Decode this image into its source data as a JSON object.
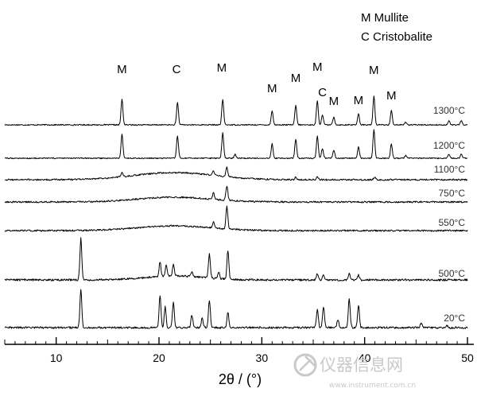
{
  "chart_data": {
    "type": "line",
    "xlabel": "2θ / (°)",
    "xlim": [
      5,
      50
    ],
    "x_ticks": [
      "10",
      "20",
      "30",
      "40",
      "50"
    ],
    "grid": false,
    "legend": {
      "placement": "top-right",
      "entries": [
        {
          "symbol": "M",
          "label": "M Mullite"
        },
        {
          "symbol": "C",
          "label": "C Cristobalite"
        }
      ]
    },
    "series_labels": [
      "1300°C",
      "1200°C",
      "1100°C",
      "750°C",
      "550°C",
      "500°C",
      "20°C"
    ],
    "series": [
      {
        "name": "1300°C",
        "baseline": 0,
        "noise": 0.35,
        "peaks": [
          [
            16.4,
            16
          ],
          [
            21.8,
            14
          ],
          [
            26.2,
            16
          ],
          [
            31.0,
            9
          ],
          [
            33.3,
            12
          ],
          [
            35.4,
            15
          ],
          [
            35.9,
            6
          ],
          [
            37.0,
            5
          ],
          [
            39.4,
            7
          ],
          [
            40.9,
            18
          ],
          [
            42.6,
            9
          ],
          [
            44.0,
            1.8
          ],
          [
            48.2,
            2.5
          ],
          [
            49.4,
            2.5
          ]
        ],
        "humps": []
      },
      {
        "name": "1200°C",
        "baseline": 0,
        "noise": 0.35,
        "peaks": [
          [
            16.4,
            15
          ],
          [
            21.8,
            14
          ],
          [
            26.2,
            16
          ],
          [
            27.4,
            2.5
          ],
          [
            31.0,
            9
          ],
          [
            33.3,
            12
          ],
          [
            35.4,
            14
          ],
          [
            35.9,
            6
          ],
          [
            37.0,
            5
          ],
          [
            39.4,
            7
          ],
          [
            40.9,
            18
          ],
          [
            42.6,
            9
          ],
          [
            44.0,
            1.8
          ],
          [
            48.2,
            2.5
          ],
          [
            49.4,
            2.5
          ]
        ],
        "humps": []
      },
      {
        "name": "1100°C",
        "baseline": 0,
        "noise": 0.5,
        "peaks": [
          [
            16.4,
            2.5
          ],
          [
            25.3,
            3
          ],
          [
            26.6,
            6
          ],
          [
            33.3,
            1.5
          ],
          [
            35.4,
            2
          ],
          [
            41.0,
            1.8
          ]
        ],
        "humps": [
          [
            21.5,
            4.5,
            5.5
          ]
        ]
      },
      {
        "name": "750°C",
        "baseline": 0,
        "noise": 0.5,
        "peaks": [
          [
            25.3,
            4
          ],
          [
            26.6,
            9
          ]
        ],
        "humps": [
          [
            21.5,
            3,
            5
          ]
        ]
      },
      {
        "name": "550°C",
        "baseline": 0,
        "noise": 0.5,
        "peaks": [
          [
            25.3,
            4
          ],
          [
            26.6,
            14
          ]
        ],
        "humps": [
          [
            21.5,
            3,
            5
          ]
        ]
      },
      {
        "name": "500°C",
        "baseline": 0,
        "noise": 0.6,
        "peaks": [
          [
            12.4,
            26
          ],
          [
            20.1,
            9
          ],
          [
            20.7,
            7
          ],
          [
            21.4,
            7
          ],
          [
            23.2,
            3
          ],
          [
            24.9,
            15
          ],
          [
            25.8,
            4
          ],
          [
            26.7,
            18
          ],
          [
            35.4,
            4
          ],
          [
            36.0,
            3
          ],
          [
            38.5,
            4
          ],
          [
            39.4,
            3
          ]
        ],
        "humps": [
          [
            21.5,
            2.5,
            4
          ]
        ]
      },
      {
        "name": "20°C",
        "baseline": 0,
        "noise": 0.6,
        "peaks": [
          [
            12.4,
            24
          ],
          [
            20.1,
            20
          ],
          [
            20.6,
            13
          ],
          [
            21.4,
            16
          ],
          [
            23.2,
            8
          ],
          [
            24.2,
            6
          ],
          [
            24.9,
            17
          ],
          [
            26.7,
            10
          ],
          [
            35.4,
            11
          ],
          [
            36.0,
            13
          ],
          [
            37.4,
            5
          ],
          [
            38.5,
            18
          ],
          [
            39.4,
            14
          ],
          [
            45.5,
            3
          ],
          [
            48.0,
            1
          ]
        ],
        "humps": []
      }
    ],
    "peak_markers": [
      {
        "label": "M",
        "x": 16.4
      },
      {
        "label": "C",
        "x": 21.7
      },
      {
        "label": "M",
        "x": 26.1
      },
      {
        "label": "M",
        "x": 31.0
      },
      {
        "label": "M",
        "x": 33.3
      },
      {
        "label": "M",
        "x": 35.4
      },
      {
        "label": "C",
        "x": 35.9
      },
      {
        "label": "M",
        "x": 37.0
      },
      {
        "label": "M",
        "x": 39.4
      },
      {
        "label": "M",
        "x": 40.9
      },
      {
        "label": "M",
        "x": 42.6
      }
    ]
  },
  "watermark": {
    "text": "仪器信息网",
    "url": "www.instrument.com.cn"
  }
}
